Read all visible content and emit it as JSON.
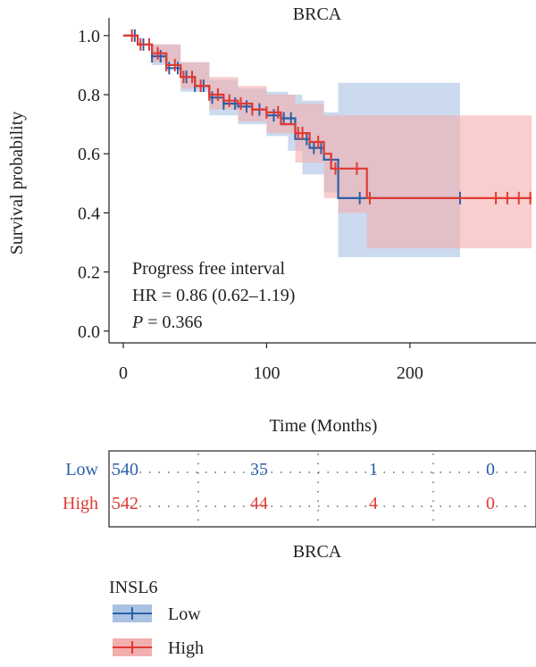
{
  "chart_data": {
    "type": "line",
    "title": "BRCA",
    "xlabel": "Time (Months)",
    "ylabel": "Survival probability",
    "xlim": [
      -10,
      288
    ],
    "ylim": [
      -0.04,
      1.06
    ],
    "xticks": [
      0,
      100,
      200
    ],
    "yticks": [
      0.0,
      0.2,
      0.4,
      0.6,
      0.8,
      1.0
    ],
    "ytick_labels": [
      "0.0",
      "0.2",
      "0.4",
      "0.6",
      "0.8",
      "1.0"
    ],
    "annotation": {
      "line1": "Progress free interval",
      "line2": "HR = 0.86 (0.62–1.19)",
      "p_label": "P",
      "p_value": " = 0.366"
    },
    "series": [
      {
        "name": "Low",
        "color": "#2b5fa8",
        "ci_color": "#a9c1e2",
        "steps": [
          [
            0,
            1.0
          ],
          [
            10,
            0.97
          ],
          [
            20,
            0.93
          ],
          [
            30,
            0.89
          ],
          [
            40,
            0.86
          ],
          [
            50,
            0.83
          ],
          [
            60,
            0.79
          ],
          [
            70,
            0.77
          ],
          [
            80,
            0.76
          ],
          [
            90,
            0.75
          ],
          [
            100,
            0.73
          ],
          [
            110,
            0.72
          ],
          [
            120,
            0.65
          ],
          [
            130,
            0.62
          ],
          [
            140,
            0.58
          ],
          [
            150,
            0.45
          ],
          [
            235,
            0.45
          ]
        ],
        "ci_upper": [
          [
            0,
            1.0
          ],
          [
            20,
            0.97
          ],
          [
            40,
            0.91
          ],
          [
            60,
            0.85
          ],
          [
            80,
            0.82
          ],
          [
            100,
            0.81
          ],
          [
            115,
            0.8
          ],
          [
            125,
            0.78
          ],
          [
            140,
            0.74
          ],
          [
            150,
            0.84
          ],
          [
            235,
            0.84
          ]
        ],
        "ci_lower": [
          [
            0,
            1.0
          ],
          [
            20,
            0.9
          ],
          [
            40,
            0.81
          ],
          [
            60,
            0.73
          ],
          [
            80,
            0.7
          ],
          [
            100,
            0.66
          ],
          [
            115,
            0.61
          ],
          [
            125,
            0.53
          ],
          [
            140,
            0.47
          ],
          [
            150,
            0.25
          ],
          [
            235,
            0.25
          ]
        ],
        "censor_x": [
          8,
          14,
          20,
          26,
          32,
          38,
          44,
          50,
          56,
          62,
          70,
          78,
          86,
          95,
          105,
          112,
          117,
          128,
          133,
          138,
          145,
          165,
          235
        ]
      },
      {
        "name": "High",
        "color": "#e03a33",
        "ci_color": "#f3aeae",
        "steps": [
          [
            0,
            1.0
          ],
          [
            10,
            0.97
          ],
          [
            20,
            0.94
          ],
          [
            30,
            0.9
          ],
          [
            40,
            0.86
          ],
          [
            50,
            0.83
          ],
          [
            60,
            0.8
          ],
          [
            70,
            0.78
          ],
          [
            80,
            0.77
          ],
          [
            90,
            0.75
          ],
          [
            100,
            0.74
          ],
          [
            110,
            0.7
          ],
          [
            120,
            0.67
          ],
          [
            130,
            0.64
          ],
          [
            140,
            0.6
          ],
          [
            145,
            0.55
          ],
          [
            170,
            0.45
          ],
          [
            285,
            0.45
          ]
        ],
        "ci_upper": [
          [
            0,
            1.0
          ],
          [
            20,
            0.97
          ],
          [
            40,
            0.91
          ],
          [
            60,
            0.86
          ],
          [
            80,
            0.83
          ],
          [
            100,
            0.8
          ],
          [
            120,
            0.77
          ],
          [
            140,
            0.73
          ],
          [
            170,
            0.73
          ],
          [
            285,
            0.73
          ]
        ],
        "ci_lower": [
          [
            0,
            1.0
          ],
          [
            20,
            0.91
          ],
          [
            40,
            0.82
          ],
          [
            60,
            0.75
          ],
          [
            80,
            0.71
          ],
          [
            100,
            0.67
          ],
          [
            120,
            0.57
          ],
          [
            140,
            0.45
          ],
          [
            150,
            0.4
          ],
          [
            170,
            0.28
          ],
          [
            285,
            0.28
          ]
        ],
        "censor_x": [
          6,
          12,
          18,
          24,
          30,
          36,
          42,
          48,
          54,
          60,
          66,
          74,
          82,
          90,
          100,
          108,
          122,
          125,
          136,
          148,
          163,
          172,
          260,
          268,
          276,
          284
        ]
      }
    ]
  },
  "risk_table": {
    "rows": [
      {
        "label": "Low",
        "color": "#2b5fa8",
        "values": [
          "540",
          "35",
          "1",
          "0"
        ]
      },
      {
        "label": "High",
        "color": "#e03a33",
        "values": [
          "542",
          "44",
          "4",
          "0"
        ]
      }
    ],
    "title": "BRCA"
  },
  "legend": {
    "title": "INSL6",
    "items": [
      {
        "label": "Low",
        "color": "#2b5fa8",
        "fill": "#a9c1e2"
      },
      {
        "label": "High",
        "color": "#e03a33",
        "fill": "#f3aeae"
      }
    ]
  }
}
